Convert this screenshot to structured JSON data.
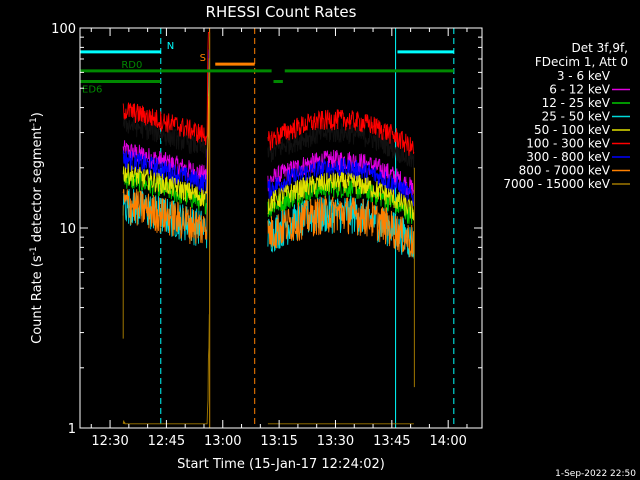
{
  "chart_data": {
    "type": "line",
    "title": "RHESSI Count Rates",
    "xlabel": "Start Time (15-Jan-17 12:24:02)",
    "ylabel_main": "Count Rate (s",
    "ylabel_sup1": "-1",
    "ylabel_mid": " detector segment",
    "ylabel_sup2": "-1",
    "ylabel_end": ")",
    "yscale": "log",
    "xlim_minutes": [
      -8,
      99
    ],
    "ylim": [
      1,
      100
    ],
    "x_ticks": [
      {
        "label": "12:30",
        "t": 0
      },
      {
        "label": "12:45",
        "t": 15
      },
      {
        "label": "13:00",
        "t": 30
      },
      {
        "label": "13:15",
        "t": 45
      },
      {
        "label": "13:30",
        "t": 60
      },
      {
        "label": "13:45",
        "t": 75
      },
      {
        "label": "14:00",
        "t": 90
      }
    ],
    "y_ticks": [
      {
        "label": "1",
        "v": 1
      },
      {
        "label": "10",
        "v": 10
      },
      {
        "label": "100",
        "v": 100
      }
    ],
    "legend_header": [
      "Det 3f,9f,",
      "FDecim 1, Att 0"
    ],
    "series": [
      {
        "name": "3 - 6 keV",
        "color": "#000000",
        "base": 30
      },
      {
        "name": "6 - 12 keV",
        "color": "#e000e0",
        "base": 22
      },
      {
        "name": "12 - 25 keV",
        "color": "#00c800",
        "base": 16
      },
      {
        "name": "25 - 50 keV",
        "color": "#00d8d8",
        "base": 12
      },
      {
        "name": "50 - 100 keV",
        "color": "#e0e000",
        "base": 17
      },
      {
        "name": "100 - 300 keV",
        "color": "#ff0000",
        "base": 35
      },
      {
        "name": "300 - 800 keV",
        "color": "#0000ff",
        "base": 20
      },
      {
        "name": "800 - 7000 keV",
        "color": "#ff8000",
        "base": 12
      },
      {
        "name": "7000 - 15000 keV",
        "color": "#a07800",
        "base": 0.8
      }
    ],
    "data_intervals": [
      [
        3.5,
        26.5
      ],
      [
        42,
        81
      ]
    ],
    "flag_bars": [
      {
        "label": "N",
        "color": "#00ffff",
        "row": 76,
        "segments": [
          [
            -8,
            13.5
          ],
          [
            76.5,
            91.5
          ]
        ]
      },
      {
        "label": "S",
        "color": "#ff8000",
        "row": 66,
        "segments": [
          [
            28,
            38.5
          ]
        ]
      },
      {
        "label": "RD0",
        "color": "#008800",
        "row": 61,
        "segments": [
          [
            -8,
            13.5
          ],
          [
            13.5,
            43
          ],
          [
            46.5,
            91.5
          ]
        ]
      },
      {
        "label": "ED6",
        "color": "#008800",
        "row": 54,
        "segments": [
          [
            -8,
            13.5
          ],
          [
            43.5,
            46
          ]
        ]
      }
    ],
    "vlines": [
      {
        "t": 13.5,
        "color": "#00ffff",
        "dash": true
      },
      {
        "t": 26.5,
        "color": "#ff8000",
        "dash": false
      },
      {
        "t": 38.5,
        "color": "#ff8000",
        "dash": true
      },
      {
        "t": 76,
        "color": "#00ffff",
        "dash": false
      },
      {
        "t": 91.5,
        "color": "#00ffff",
        "dash": true
      }
    ]
  },
  "footer_date": "1-Sep-2022 22:50"
}
